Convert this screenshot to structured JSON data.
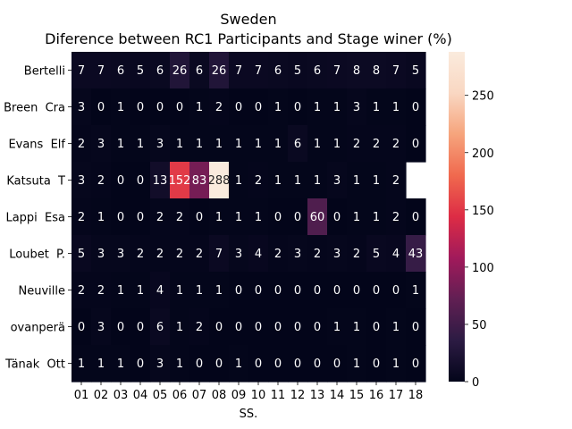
{
  "chart_data": {
    "type": "heatmap",
    "title": "Sweden",
    "subtitle": "Diference between RC1 Participants and Stage winer (%)",
    "xlabel": "SS.",
    "ylabel": "",
    "x": [
      "01",
      "02",
      "03",
      "04",
      "05",
      "06",
      "07",
      "08",
      "09",
      "10",
      "11",
      "12",
      "13",
      "14",
      "15",
      "16",
      "17",
      "18"
    ],
    "y": [
      "Bertelli",
      "Breen  Cra",
      "Evans  Elf",
      "Katsuta  T",
      "Lappi  Esa",
      "Loubet  P.",
      "Neuville",
      "ovanperä",
      "Tänak  Ott"
    ],
    "values": [
      [
        7,
        7,
        6,
        5,
        6,
        26,
        6,
        26,
        7,
        7,
        6,
        5,
        6,
        7,
        8,
        8,
        7,
        5
      ],
      [
        3,
        0,
        1,
        0,
        0,
        0,
        1,
        2,
        0,
        0,
        1,
        0,
        1,
        1,
        3,
        1,
        1,
        0
      ],
      [
        2,
        3,
        1,
        1,
        3,
        1,
        1,
        1,
        1,
        1,
        1,
        6,
        1,
        1,
        2,
        2,
        2,
        0
      ],
      [
        3,
        2,
        0,
        0,
        13,
        152,
        83,
        288,
        1,
        2,
        1,
        1,
        1,
        3,
        1,
        1,
        2,
        null
      ],
      [
        2,
        1,
        0,
        0,
        2,
        2,
        0,
        1,
        1,
        1,
        0,
        0,
        60,
        0,
        1,
        1,
        2,
        0
      ],
      [
        5,
        3,
        3,
        2,
        2,
        2,
        2,
        7,
        3,
        4,
        2,
        3,
        2,
        3,
        2,
        5,
        4,
        43
      ],
      [
        2,
        2,
        1,
        1,
        4,
        1,
        1,
        1,
        0,
        0,
        0,
        0,
        0,
        0,
        0,
        0,
        0,
        1
      ],
      [
        0,
        3,
        0,
        0,
        6,
        1,
        2,
        0,
        0,
        0,
        0,
        0,
        0,
        1,
        1,
        0,
        1,
        0
      ],
      [
        1,
        1,
        1,
        0,
        3,
        1,
        0,
        0,
        1,
        0,
        0,
        0,
        0,
        0,
        1,
        0,
        1,
        0
      ]
    ],
    "colorbar": {
      "min": 0,
      "max": 288,
      "ticks": [
        0,
        50,
        100,
        150,
        200,
        250
      ]
    },
    "colormap": "rocket",
    "colormap_stops": [
      "#03051a",
      "#2c1b43",
      "#611f53",
      "#a11a5b",
      "#dd2c45",
      "#f0694e",
      "#f6a47c",
      "#f9d7c2",
      "#faebdd"
    ],
    "grid": false,
    "legend": "colorbar-right"
  }
}
